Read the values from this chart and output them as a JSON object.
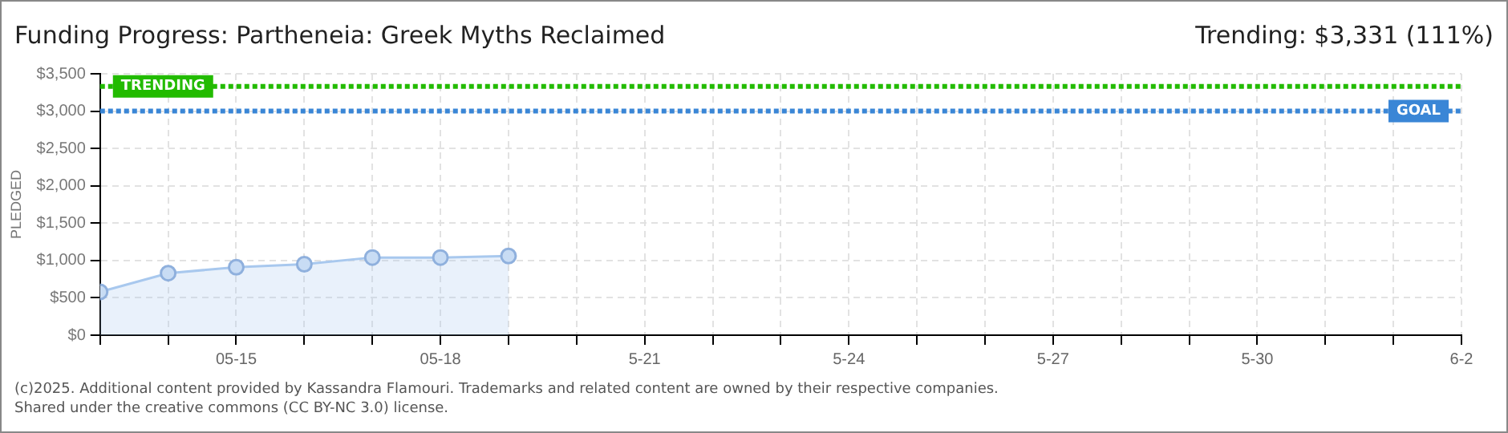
{
  "chart_data": {
    "type": "area",
    "title": "Funding Progress: Partheneia: Greek Myths Reclaimed",
    "ylabel": "PLEDGED",
    "x": [
      "2025-05-13",
      "2025-05-14",
      "2025-05-15",
      "2025-05-16",
      "2025-05-17",
      "2025-05-18",
      "2025-05-19"
    ],
    "series": [
      {
        "color": "#a8c8ee",
        "values": [
          580,
          830,
          910,
          950,
          1040,
          1040,
          1060
        ]
      }
    ],
    "xlim": [
      "2025-05-13",
      "2025-06-02"
    ],
    "xticks": [
      {
        "value": "2025-05-13",
        "label": null
      },
      {
        "value": "2025-05-14",
        "label": null
      },
      {
        "value": "2025-05-15",
        "label": "05-15"
      },
      {
        "value": "2025-05-16",
        "label": null
      },
      {
        "value": "2025-05-17",
        "label": null
      },
      {
        "value": "2025-05-18",
        "label": "05-18"
      },
      {
        "value": "2025-05-19",
        "label": null
      },
      {
        "value": "2025-05-20",
        "label": null
      },
      {
        "value": "2025-05-21",
        "label": "5-21"
      },
      {
        "value": "2025-05-22",
        "label": null
      },
      {
        "value": "2025-05-23",
        "label": null
      },
      {
        "value": "2025-05-24",
        "label": "5-24"
      },
      {
        "value": "2025-05-25",
        "label": null
      },
      {
        "value": "2025-05-26",
        "label": null
      },
      {
        "value": "2025-05-27",
        "label": "5-27"
      },
      {
        "value": "2025-05-28",
        "label": null
      },
      {
        "value": "2025-05-29",
        "label": null
      },
      {
        "value": "2025-05-30",
        "label": "5-30"
      },
      {
        "value": "2025-05-31",
        "label": null
      },
      {
        "value": "2025-06-01",
        "label": null
      },
      {
        "value": "2025-06-02",
        "label": "6-2"
      }
    ],
    "ylim": [
      0,
      3500
    ],
    "yticks": [
      {
        "value": 0,
        "label": "$0"
      },
      {
        "value": 500,
        "label": "$500"
      },
      {
        "value": 1000,
        "label": "$1,000"
      },
      {
        "value": 1500,
        "label": "$1,500"
      },
      {
        "value": 2000,
        "label": "$2,000"
      },
      {
        "value": 2500,
        "label": "$2,500"
      },
      {
        "value": 3000,
        "label": "$3,000"
      },
      {
        "value": 3500,
        "label": "$3,500"
      }
    ],
    "ref_lines": [
      {
        "axis": "y",
        "value": 3331,
        "label": "TRENDING",
        "color": "#22bb00",
        "line_style": "dotted"
      },
      {
        "axis": "y",
        "value": 3000,
        "label": "GOAL",
        "color": "#3a86d6",
        "line_style": "dotted"
      }
    ],
    "annotations": [
      "Trending: $3,331 (111%)",
      "(c)2025. Additional content provided by Kassandra Flamouri. Trademarks and related content are owned by their respective companies.",
      "Shared under the creative commons (CC BY-NC 3.0) license."
    ],
    "grid": true,
    "marker": "circle",
    "legend": false
  }
}
